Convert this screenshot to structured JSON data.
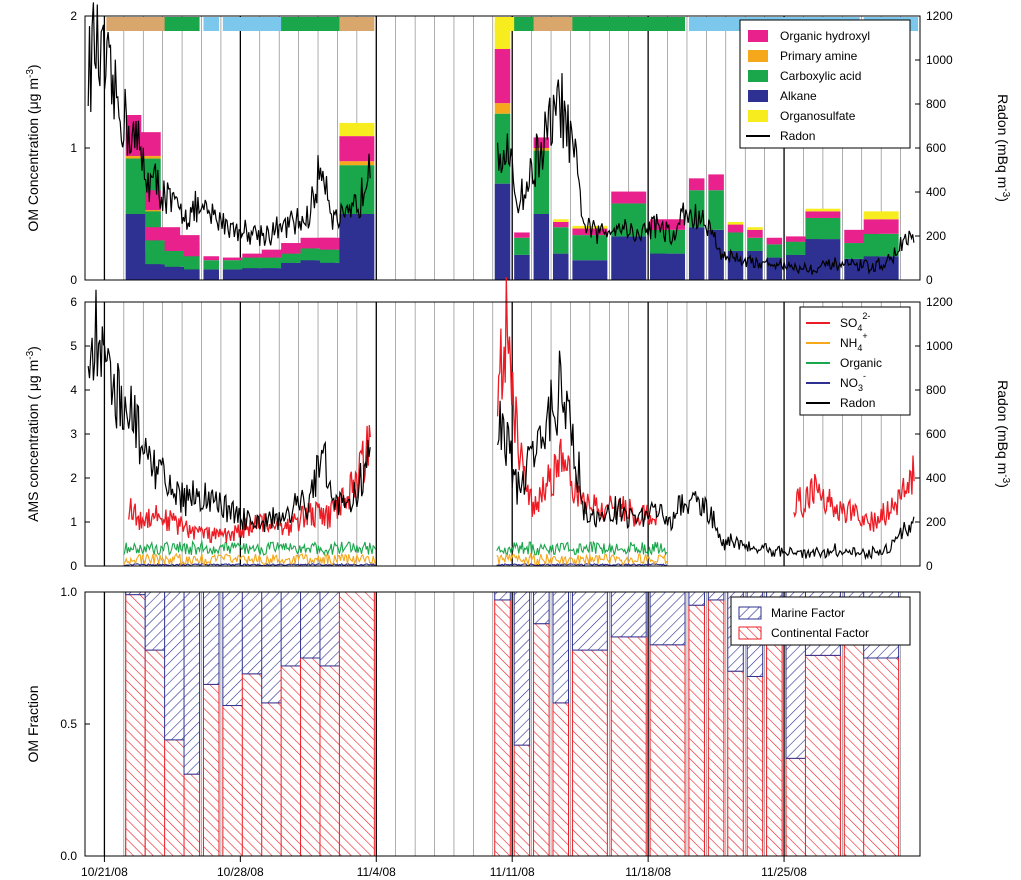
{
  "x_tick_labels": [
    "10/21/08",
    "10/28/08",
    "11/4/08",
    "11/11/08",
    "11/18/08",
    "11/25/08"
  ],
  "panels": [
    {
      "ylabel": "OM Concentration (μg m",
      "ylabel_sup": "-3",
      "ylabel_end": ")",
      "yticks": [
        "0",
        "1",
        "2"
      ],
      "y2label": "Radon (mBq m",
      "y2label_sup": "-3",
      "y2label_end": ")",
      "y2ticks": [
        "0",
        "200",
        "400",
        "600",
        "800",
        "1000",
        "1200"
      ],
      "legend": [
        {
          "label": "Organic hydroxyl",
          "sub": "",
          "sup": "",
          "color": "#e8218c",
          "kind": "box"
        },
        {
          "label": "Primary amine",
          "sub": "",
          "sup": "",
          "color": "#f5a81c",
          "kind": "box"
        },
        {
          "label": "Carboxylic acid",
          "sub": "",
          "sup": "",
          "color": "#1aa64b",
          "kind": "box"
        },
        {
          "label": "Alkane",
          "sub": "",
          "sup": "",
          "color": "#2e3192",
          "kind": "box"
        },
        {
          "label": "Organosulfate",
          "sub": "",
          "sup": "",
          "color": "#f7ec1d",
          "kind": "box"
        },
        {
          "label": "Radon",
          "sub": "",
          "sup": "",
          "color": "#000000",
          "kind": "line"
        }
      ]
    },
    {
      "ylabel": "AMS concentration ( μg m",
      "ylabel_sup": "-3",
      "ylabel_end": ")",
      "yticks": [
        "0",
        "1",
        "2",
        "3",
        "4",
        "5",
        "6"
      ],
      "y2label": "Radon (mBq m",
      "y2label_sup": "-3",
      "y2label_end": ")",
      "y2ticks": [
        "0",
        "200",
        "400",
        "600",
        "800",
        "1000",
        "1200"
      ],
      "legend": [
        {
          "label": "SO",
          "sub": "4",
          "sup": "2-",
          "color": "#ed1c24",
          "kind": "line"
        },
        {
          "label": "NH",
          "sub": "4",
          "sup": "+",
          "color": "#f5a81c",
          "kind": "line"
        },
        {
          "label": "Organic",
          "sub": "",
          "sup": "",
          "color": "#1aa64b",
          "kind": "line"
        },
        {
          "label": "NO",
          "sub": "3",
          "sup": "-",
          "color": "#2e3192",
          "kind": "line"
        },
        {
          "label": "Radon",
          "sub": "",
          "sup": "",
          "color": "#000000",
          "kind": "line"
        }
      ]
    },
    {
      "ylabel": "OM Fraction",
      "yticks": [
        "0.0",
        "0.5",
        "1.0"
      ],
      "legend": [
        {
          "label": "Marine Factor",
          "color": "#2e3192",
          "kind": "hatch"
        },
        {
          "label": "Continental Factor",
          "color": "#ed1c24",
          "kind": "hatch"
        }
      ]
    }
  ],
  "colors": {
    "organic_hydroxyl": "#e8218c",
    "primary_amine": "#f5a81c",
    "carboxylic_acid": "#1aa64b",
    "alkane": "#2e3192",
    "organosulfate": "#f7ec1d",
    "radon": "#000000",
    "sulfate": "#ed1c24",
    "marine": "#2e3192",
    "continental": "#ed1c24",
    "band_orange": "#d9a66c",
    "band_green": "#1aa64b",
    "band_blue": "#7cc8ec"
  },
  "chart_data": {
    "type": "bar",
    "x_axis": {
      "type": "date",
      "range": [
        "2008-10-20",
        "2008-12-02"
      ]
    },
    "samples": [
      {
        "start": "2008-10-22",
        "end": "2008-10-22",
        "oh": 0.22,
        "amine": 0.0,
        "acid": 0.5,
        "alkane": 0.53,
        "os": 0.0,
        "marine": 0.08,
        "continental": 0.92
      },
      {
        "start": "2008-10-22",
        "end": "2008-10-23",
        "oh": 0.18,
        "amine": 0.02,
        "acid": 0.42,
        "alkane": 0.5,
        "os": 0.0,
        "marine": 0.01,
        "continental": 0.99
      },
      {
        "start": "2008-10-23",
        "end": "2008-10-23",
        "oh": 0.15,
        "amine": 0.01,
        "acid": 0.3,
        "alkane": 0.22,
        "os": 0.0,
        "marine": 0.28,
        "continental": 0.72
      },
      {
        "start": "2008-10-23",
        "end": "2008-10-24",
        "oh": 0.1,
        "amine": 0.0,
        "acid": 0.18,
        "alkane": 0.12,
        "os": 0.0,
        "marine": 0.22,
        "continental": 0.78
      },
      {
        "start": "2008-10-24",
        "end": "2008-10-25",
        "oh": 0.12,
        "amine": 0.0,
        "acid": 0.12,
        "alkane": 0.1,
        "os": 0.0,
        "marine": 0.56,
        "continental": 0.44
      },
      {
        "start": "2008-10-25",
        "end": "2008-10-25",
        "oh": 0.1,
        "amine": 0.0,
        "acid": 0.1,
        "alkane": 0.08,
        "os": 0.0,
        "marine": 0.69,
        "continental": 0.31
      },
      {
        "start": "2008-10-26",
        "end": "2008-10-26",
        "oh": 0.03,
        "amine": 0.0,
        "acid": 0.07,
        "alkane": 0.08,
        "os": 0.0,
        "marine": 0.35,
        "continental": 0.65
      },
      {
        "start": "2008-10-27",
        "end": "2008-10-28",
        "oh": 0.02,
        "amine": 0.0,
        "acid": 0.07,
        "alkane": 0.08,
        "os": 0.0,
        "marine": 0.43,
        "continental": 0.57
      },
      {
        "start": "2008-10-28",
        "end": "2008-10-29",
        "oh": 0.03,
        "amine": 0.0,
        "acid": 0.08,
        "alkane": 0.09,
        "os": 0.0,
        "marine": 0.31,
        "continental": 0.69
      },
      {
        "start": "2008-10-29",
        "end": "2008-10-30",
        "oh": 0.06,
        "amine": 0.0,
        "acid": 0.08,
        "alkane": 0.09,
        "os": 0.0,
        "marine": 0.42,
        "continental": 0.58
      },
      {
        "start": "2008-10-30",
        "end": "2008-10-31",
        "oh": 0.08,
        "amine": 0.0,
        "acid": 0.07,
        "alkane": 0.13,
        "os": 0.0,
        "marine": 0.28,
        "continental": 0.72
      },
      {
        "start": "2008-10-31",
        "end": "2008-11-01",
        "oh": 0.08,
        "amine": 0.0,
        "acid": 0.09,
        "alkane": 0.15,
        "os": 0.0,
        "marine": 0.25,
        "continental": 0.75
      },
      {
        "start": "2008-11-01",
        "end": "2008-11-02",
        "oh": 0.09,
        "amine": 0.0,
        "acid": 0.1,
        "alkane": 0.13,
        "os": 0.0,
        "marine": 0.28,
        "continental": 0.72
      },
      {
        "start": "2008-11-02",
        "end": "2008-11-03",
        "oh": 0.19,
        "amine": 0.03,
        "acid": 0.37,
        "alkane": 0.5,
        "os": 0.1,
        "marine": 0.0,
        "continental": 1.0
      },
      {
        "start": "2008-11-10",
        "end": "2008-11-10",
        "oh": 0.41,
        "amine": 0.08,
        "acid": 0.53,
        "alkane": 0.73,
        "os": 0.2,
        "marine": 0.03,
        "continental": 0.97
      },
      {
        "start": "2008-11-11",
        "end": "2008-11-11",
        "oh": 0.04,
        "amine": 0.0,
        "acid": 0.13,
        "alkane": 0.19,
        "os": 0.0,
        "marine": 0.58,
        "continental": 0.42
      },
      {
        "start": "2008-11-12",
        "end": "2008-11-12",
        "oh": 0.08,
        "amine": 0.02,
        "acid": 0.48,
        "alkane": 0.5,
        "os": 0.0,
        "marine": 0.12,
        "continental": 0.88
      },
      {
        "start": "2008-11-13",
        "end": "2008-11-13",
        "oh": 0.04,
        "amine": 0.0,
        "acid": 0.2,
        "alkane": 0.2,
        "os": 0.02,
        "marine": 0.42,
        "continental": 0.58
      },
      {
        "start": "2008-11-14",
        "end": "2008-11-15",
        "oh": 0.05,
        "amine": 0.0,
        "acid": 0.19,
        "alkane": 0.15,
        "os": 0.02,
        "marine": 0.22,
        "continental": 0.78
      },
      {
        "start": "2008-11-16",
        "end": "2008-11-17",
        "oh": 0.09,
        "amine": 0.0,
        "acid": 0.25,
        "alkane": 0.33,
        "os": 0.0,
        "marine": 0.17,
        "continental": 0.83
      },
      {
        "start": "2008-11-18",
        "end": "2008-11-18",
        "oh": 0.07,
        "amine": 0.0,
        "acid": 0.17,
        "alkane": 0.21,
        "os": 0.0,
        "marine": 0.41,
        "continental": 0.59
      },
      {
        "start": "2008-11-18",
        "end": "2008-11-19",
        "oh": 0.08,
        "amine": 0.0,
        "acid": 0.18,
        "alkane": 0.2,
        "os": 0.0,
        "marine": 0.2,
        "continental": 0.8
      },
      {
        "start": "2008-11-20",
        "end": "2008-11-20",
        "oh": 0.09,
        "amine": 0.0,
        "acid": 0.28,
        "alkane": 0.4,
        "os": 0.0,
        "marine": 0.05,
        "continental": 0.95
      },
      {
        "start": "2008-11-21",
        "end": "2008-11-21",
        "oh": 0.12,
        "amine": 0.0,
        "acid": 0.3,
        "alkane": 0.38,
        "os": 0.0,
        "marine": 0.03,
        "continental": 0.97
      },
      {
        "start": "2008-11-22",
        "end": "2008-11-22",
        "oh": 0.06,
        "amine": 0.0,
        "acid": 0.14,
        "alkane": 0.22,
        "os": 0.02,
        "marine": 0.3,
        "continental": 0.7
      },
      {
        "start": "2008-11-23",
        "end": "2008-11-23",
        "oh": 0.06,
        "amine": 0.0,
        "acid": 0.1,
        "alkane": 0.22,
        "os": 0.02,
        "marine": 0.32,
        "continental": 0.68
      },
      {
        "start": "2008-11-24",
        "end": "2008-11-24",
        "oh": 0.05,
        "amine": 0.0,
        "acid": 0.1,
        "alkane": 0.17,
        "os": 0.0,
        "marine": 0.18,
        "continental": 0.82
      },
      {
        "start": "2008-11-25",
        "end": "2008-11-25",
        "oh": 0.04,
        "amine": 0.0,
        "acid": 0.11,
        "alkane": 0.18,
        "os": 0.0,
        "marine": 0.24,
        "continental": 0.76
      },
      {
        "start": "2008-11-25",
        "end": "2008-11-26",
        "oh": 0.04,
        "amine": 0.0,
        "acid": 0.1,
        "alkane": 0.19,
        "os": 0.0,
        "marine": 0.63,
        "continental": 0.37
      },
      {
        "start": "2008-11-26",
        "end": "2008-11-27",
        "oh": 0.05,
        "amine": 0.0,
        "acid": 0.16,
        "alkane": 0.31,
        "os": 0.02,
        "marine": 0.24,
        "continental": 0.76
      },
      {
        "start": "2008-11-28",
        "end": "2008-11-29",
        "oh": 0.1,
        "amine": 0.0,
        "acid": 0.12,
        "alkane": 0.16,
        "os": 0.0,
        "marine": 0.2,
        "continental": 0.8
      },
      {
        "start": "2008-11-29",
        "end": "2008-11-30",
        "oh": 0.11,
        "amine": 0.0,
        "acid": 0.17,
        "alkane": 0.18,
        "os": 0.06,
        "marine": 0.25,
        "continental": 0.75
      }
    ],
    "source_bands": [
      {
        "start": "2008-10-21",
        "end": "2008-10-22",
        "type": "band_orange"
      },
      {
        "start": "2008-10-22",
        "end": "2008-10-24",
        "type": "band_orange"
      },
      {
        "start": "2008-10-24",
        "end": "2008-10-25",
        "type": "band_green"
      },
      {
        "start": "2008-10-26",
        "end": "2008-10-26",
        "type": "band_blue"
      },
      {
        "start": "2008-10-27",
        "end": "2008-10-30",
        "type": "band_blue"
      },
      {
        "start": "2008-10-30",
        "end": "2008-11-02",
        "type": "band_green"
      },
      {
        "start": "2008-11-02",
        "end": "2008-11-03",
        "type": "band_orange"
      },
      {
        "start": "2008-11-10",
        "end": "2008-11-11",
        "type": "band_yellow"
      },
      {
        "start": "2008-11-11",
        "end": "2008-11-12",
        "type": "band_green"
      },
      {
        "start": "2008-11-12",
        "end": "2008-11-13",
        "type": "band_orange"
      },
      {
        "start": "2008-11-13",
        "end": "2008-11-14",
        "type": "band_orange"
      },
      {
        "start": "2008-11-14",
        "end": "2008-11-16",
        "type": "band_green"
      },
      {
        "start": "2008-11-16",
        "end": "2008-11-19",
        "type": "band_green"
      },
      {
        "start": "2008-11-20",
        "end": "2008-11-28",
        "type": "band_blue"
      },
      {
        "start": "2008-11-29",
        "end": "2008-12-01",
        "type": "band_blue"
      }
    ],
    "radon_keypoints": [
      [
        "2008-10-20",
        950
      ],
      [
        "2008-10-20",
        1080
      ],
      [
        "2008-10-20",
        980
      ],
      [
        "2008-10-21",
        900
      ],
      [
        "2008-10-21",
        780
      ],
      [
        "2008-10-22",
        700
      ],
      [
        "2008-10-22",
        600
      ],
      [
        "2008-10-23",
        460
      ],
      [
        "2008-10-23",
        430
      ],
      [
        "2008-10-24",
        340
      ],
      [
        "2008-10-25",
        300
      ],
      [
        "2008-10-25",
        320
      ],
      [
        "2008-10-26",
        290
      ],
      [
        "2008-10-27",
        260
      ],
      [
        "2008-10-27",
        230
      ],
      [
        "2008-10-28",
        220
      ],
      [
        "2008-10-29",
        210
      ],
      [
        "2008-10-30",
        250
      ],
      [
        "2008-10-31",
        280
      ],
      [
        "2008-11-01",
        540
      ],
      [
        "2008-11-01",
        290
      ],
      [
        "2008-11-02",
        270
      ],
      [
        "2008-11-03",
        380
      ],
      [
        "2008-11-03",
        650
      ],
      [
        "2008-11-10",
        650
      ],
      [
        "2008-11-10",
        560
      ],
      [
        "2008-11-11",
        360
      ],
      [
        "2008-11-11",
        420
      ],
      [
        "2008-11-12",
        550
      ],
      [
        "2008-11-12",
        650
      ],
      [
        "2008-11-13",
        800
      ],
      [
        "2008-11-14",
        520
      ],
      [
        "2008-11-14",
        240
      ],
      [
        "2008-11-15",
        210
      ],
      [
        "2008-11-16",
        260
      ],
      [
        "2008-11-17",
        200
      ],
      [
        "2008-11-18",
        260
      ],
      [
        "2008-11-18",
        240
      ],
      [
        "2008-11-19",
        180
      ],
      [
        "2008-11-19",
        300
      ],
      [
        "2008-11-20",
        280
      ],
      [
        "2008-11-21",
        230
      ],
      [
        "2008-11-21",
        120
      ],
      [
        "2008-11-22",
        100
      ],
      [
        "2008-11-23",
        80
      ],
      [
        "2008-11-25",
        60
      ],
      [
        "2008-11-26",
        50
      ],
      [
        "2008-11-27",
        70
      ],
      [
        "2008-11-29",
        60
      ],
      [
        "2008-11-30",
        90
      ],
      [
        "2008-12-01",
        180
      ],
      [
        "2008-12-01",
        200
      ]
    ],
    "sulfate_keypoints": [
      [
        "2008-10-22",
        1.4
      ],
      [
        "2008-10-22",
        1.0
      ],
      [
        "2008-10-23",
        1.2
      ],
      [
        "2008-10-24",
        1.0
      ],
      [
        "2008-10-25",
        0.8
      ],
      [
        "2008-10-26",
        0.7
      ],
      [
        "2008-10-27",
        0.7
      ],
      [
        "2008-10-28",
        0.9
      ],
      [
        "2008-10-29",
        1.0
      ],
      [
        "2008-10-30",
        0.9
      ],
      [
        "2008-10-31",
        1.2
      ],
      [
        "2008-11-01",
        1.1
      ],
      [
        "2008-11-02",
        1.6
      ],
      [
        "2008-11-03",
        2.2
      ],
      [
        "2008-11-03",
        3.1
      ],
      [
        "2008-11-10",
        4.5
      ],
      [
        "2008-11-10",
        5.6
      ],
      [
        "2008-11-11",
        3.0
      ],
      [
        "2008-11-11",
        1.6
      ],
      [
        "2008-11-12",
        1.3
      ],
      [
        "2008-11-12",
        1.8
      ],
      [
        "2008-11-13",
        2.4
      ],
      [
        "2008-11-14",
        1.5
      ],
      [
        "2008-11-15",
        1.3
      ],
      [
        "2008-11-16",
        1.4
      ],
      [
        "2008-11-17",
        1.1
      ],
      [
        "2008-11-18",
        1.2
      ],
      [
        "2008-11-25",
        1.4
      ],
      [
        "2008-11-26",
        1.5
      ],
      [
        "2008-11-26",
        1.8
      ],
      [
        "2008-11-27",
        1.4
      ],
      [
        "2008-11-28",
        1.2
      ],
      [
        "2008-11-29",
        1.0
      ],
      [
        "2008-11-30",
        1.3
      ],
      [
        "2008-12-01",
        1.7
      ],
      [
        "2008-12-01",
        2.2
      ]
    ],
    "organic_ams_level": 0.4,
    "ammonium_level": 0.15,
    "nitrate_level": 0.03
  }
}
